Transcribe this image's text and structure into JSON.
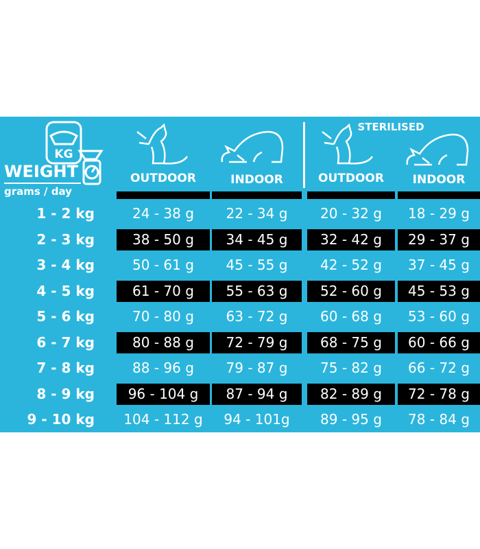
{
  "header": {
    "weight_label": "WEIGHT",
    "unit_label": "grams / day",
    "kg_icon_text": "KG",
    "sterilised_label": "STERILISED",
    "columns": [
      "OUTDOOR",
      "INDOOR",
      "OUTDOOR",
      "INDOOR"
    ]
  },
  "colors": {
    "background": "#2bb5dc",
    "alt_row": "#000000",
    "text": "#ffffff"
  },
  "rows": [
    {
      "weight": "1 - 2 kg",
      "values": [
        "24 - 38 g",
        "22 - 34 g",
        "20 - 32 g",
        "18 - 29 g"
      ]
    },
    {
      "weight": "2 - 3 kg",
      "values": [
        "38 - 50 g",
        "34 - 45 g",
        "32 - 42 g",
        "29 - 37 g"
      ]
    },
    {
      "weight": "3 - 4 kg",
      "values": [
        "50 - 61 g",
        "45 - 55 g",
        "42 - 52 g",
        "37 - 45 g"
      ]
    },
    {
      "weight": "4 - 5 kg",
      "values": [
        "61 - 70 g",
        "55 - 63 g",
        "52 - 60 g",
        "45 - 53 g"
      ]
    },
    {
      "weight": "5 - 6 kg",
      "values": [
        "70 - 80 g",
        "63 - 72 g",
        "60 - 68 g",
        "53 - 60 g"
      ]
    },
    {
      "weight": "6 - 7 kg",
      "values": [
        "80 - 88 g",
        "72 - 79 g",
        "68 - 75 g",
        "60 - 66 g"
      ]
    },
    {
      "weight": "7 - 8 kg",
      "values": [
        "88 - 96 g",
        "79 - 87 g",
        "75 - 82 g",
        "66 - 72 g"
      ]
    },
    {
      "weight": "8 - 9 kg",
      "values": [
        "96 - 104 g",
        "87 - 94 g",
        "82 - 89 g",
        "72 - 78 g"
      ]
    },
    {
      "weight": "9 - 10 kg",
      "values": [
        "104 - 112 g",
        "94 - 101g",
        "89 - 95 g",
        "78 - 84 g"
      ]
    }
  ]
}
